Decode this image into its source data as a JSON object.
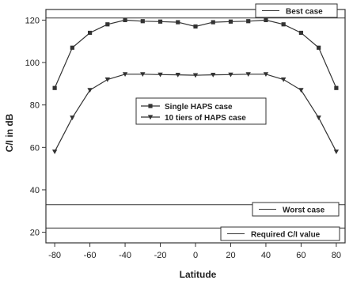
{
  "chart_data": {
    "type": "line",
    "xlabel": "Latitude",
    "ylabel": "C/I in dB",
    "xlim": [
      -85,
      85
    ],
    "ylim": [
      15,
      125
    ],
    "xticks": [
      -80,
      -60,
      -40,
      -20,
      0,
      20,
      40,
      60,
      80
    ],
    "yticks": [
      20,
      40,
      60,
      80,
      100,
      120
    ],
    "grid": false,
    "series": [
      {
        "name": "Single HAPS case",
        "marker": "square",
        "x": [
          -80,
          -70,
          -60,
          -50,
          -40,
          -30,
          -20,
          -10,
          0,
          10,
          20,
          30,
          40,
          50,
          60,
          70,
          80
        ],
        "y": [
          88,
          107,
          114,
          118,
          120,
          119.5,
          119.3,
          119,
          117,
          119,
          119.3,
          119.5,
          120,
          118,
          114,
          107,
          88
        ]
      },
      {
        "name": "10 tiers of HAPS case",
        "marker": "triangle-down",
        "x": [
          -80,
          -70,
          -60,
          -50,
          -40,
          -30,
          -20,
          -10,
          0,
          10,
          20,
          30,
          40,
          50,
          60,
          70,
          80
        ],
        "y": [
          58,
          74,
          87,
          92,
          94.5,
          94.5,
          94.3,
          94.2,
          94,
          94.2,
          94.3,
          94.5,
          94.5,
          92,
          87,
          74,
          58
        ]
      }
    ],
    "reference_lines": [
      {
        "name": "Best case",
        "y": 121
      },
      {
        "name": "Worst case",
        "y": 33
      },
      {
        "name": "Required C/I value",
        "y": 22
      }
    ],
    "legend_position": "center",
    "colors": {
      "line": "#333333",
      "marker": "#333333"
    }
  }
}
